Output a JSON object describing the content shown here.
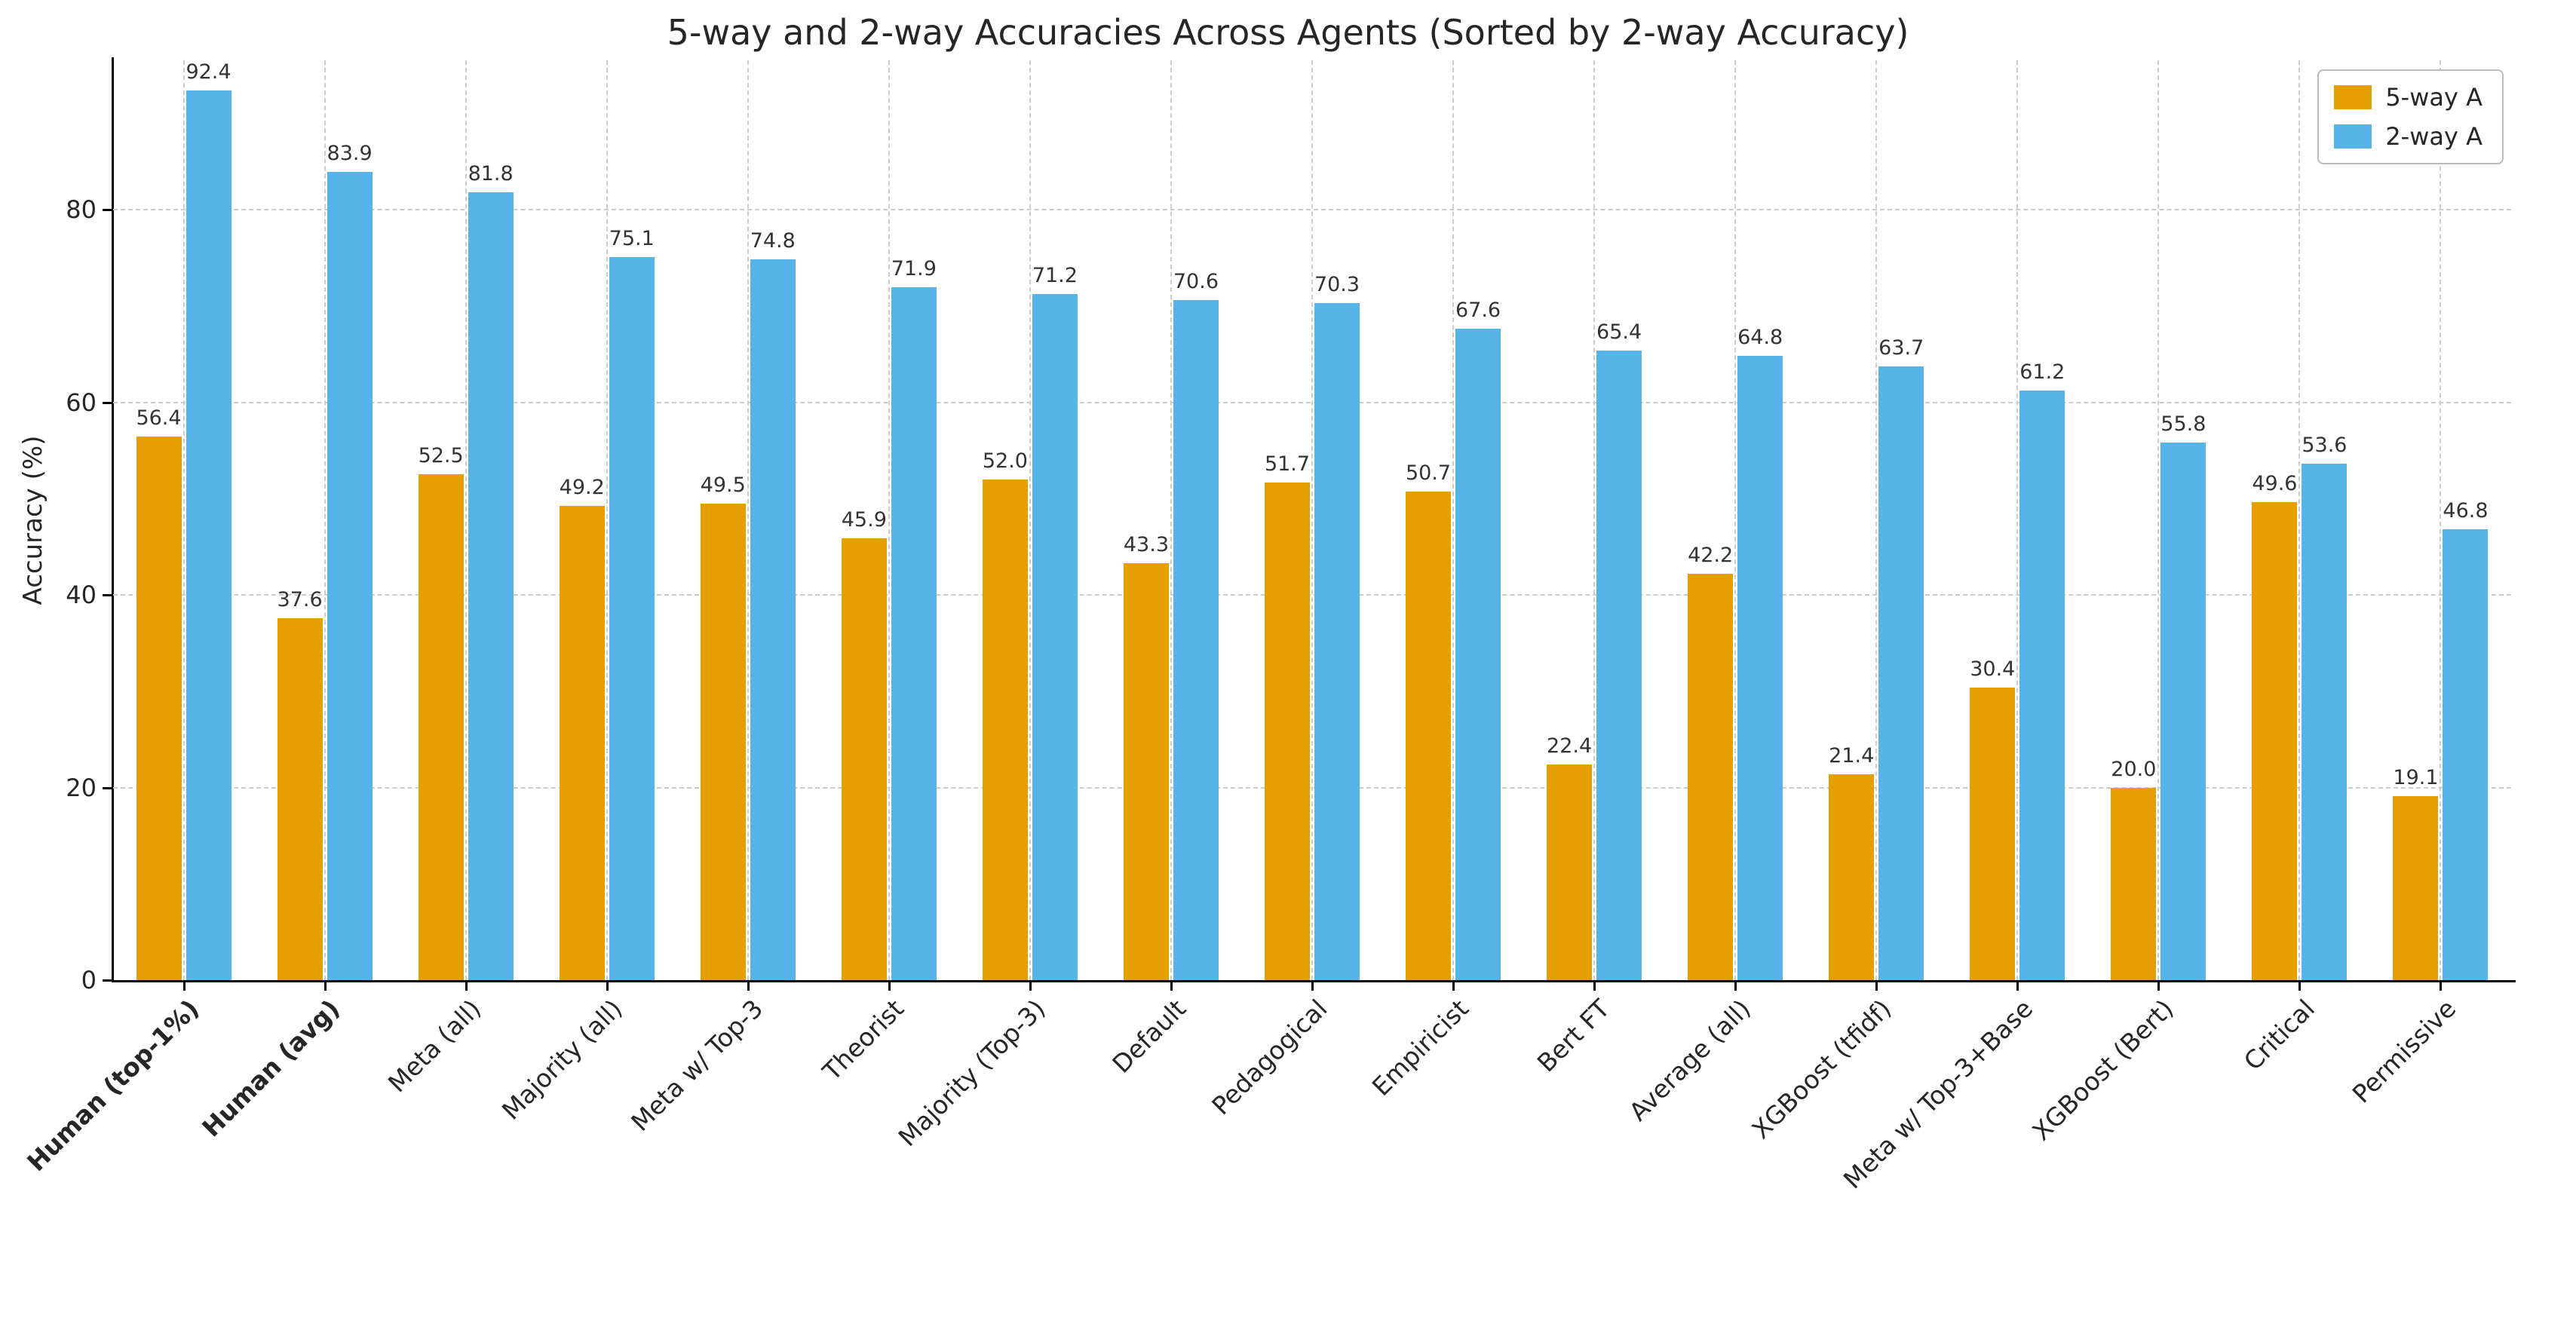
{
  "title": "5-way and 2-way Accuracies Across Agents (Sorted by 2-way Accuracy)",
  "ylabel": "Accuracy (%)",
  "legend": {
    "series1_label": "5-way A",
    "series2_label": "2-way A"
  },
  "colors": {
    "five_way": "#E69F00",
    "two_way": "#56B4E9",
    "grid": "#cccccc",
    "value_label": "#333333",
    "axis": "#000000"
  },
  "chart_data": {
    "type": "bar",
    "title": "5-way and 2-way Accuracies Across Agents (Sorted by 2-way Accuracy)",
    "xlabel": "",
    "ylabel": "Accuracy (%)",
    "ylim": [
      0,
      95.5
    ],
    "yticks": [
      0,
      20,
      40,
      60,
      80
    ],
    "grid": true,
    "legend_position": "upper right",
    "categories": [
      "Human (top-1%)",
      "Human (avg)",
      "Meta (all)",
      "Majority (all)",
      "Meta w/ Top-3",
      "Theorist",
      "Majority (Top-3)",
      "Default",
      "Pedagogical",
      "Empiricist",
      "Bert FT",
      "Average (all)",
      "XGBoost (tfidf)",
      "Meta w/ Top-3+Base",
      "XGBoost (Bert)",
      "Critical",
      "Permissive"
    ],
    "bold_categories": [
      "Human (top-1%)",
      "Human (avg)"
    ],
    "series": [
      {
        "name": "5-way A",
        "color": "#E69F00",
        "values": [
          56.4,
          37.6,
          52.5,
          49.2,
          49.5,
          45.9,
          52.0,
          43.3,
          51.7,
          50.7,
          22.4,
          42.2,
          21.4,
          30.4,
          20.0,
          49.6,
          19.1
        ]
      },
      {
        "name": "2-way A",
        "color": "#56B4E9",
        "values": [
          92.4,
          83.9,
          81.8,
          75.1,
          74.8,
          71.9,
          71.2,
          70.6,
          70.3,
          67.6,
          65.4,
          64.8,
          63.7,
          61.2,
          55.8,
          53.6,
          46.8
        ]
      }
    ]
  }
}
